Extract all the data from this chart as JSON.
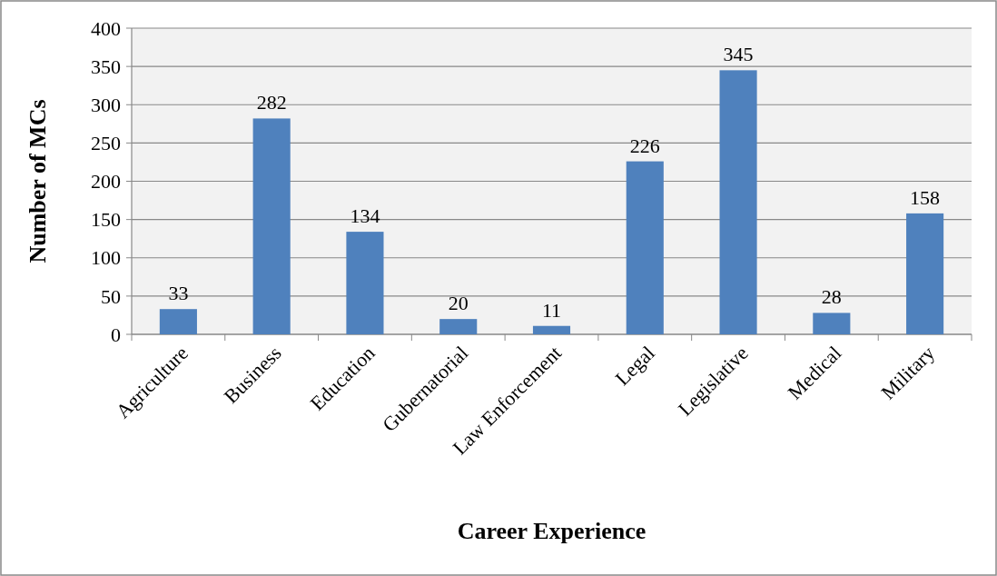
{
  "chart_data": {
    "type": "bar",
    "xlabel": "Career Experience",
    "ylabel": "Number of MCs",
    "categories": [
      "Agriculture",
      "Business",
      "Education",
      "Gubernatorial",
      "Law Enforcement",
      "Legal",
      "Legislative",
      "Medical",
      "Military"
    ],
    "values": [
      33,
      282,
      134,
      20,
      11,
      226,
      345,
      28,
      158
    ],
    "color": "#4f81bd",
    "ylim": [
      0,
      400
    ],
    "yticks": [
      0,
      50,
      100,
      150,
      200,
      250,
      300,
      350,
      400
    ],
    "grid": "y",
    "data_labels": true
  }
}
